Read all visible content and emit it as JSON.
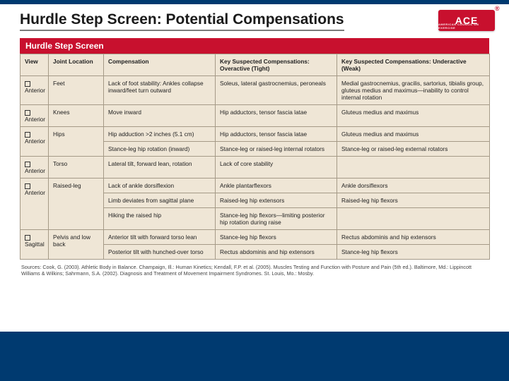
{
  "colors": {
    "accent_blue": "#003a70",
    "ace_red": "#c8102e",
    "paper": "#efe6d6",
    "rule": "#a59a87"
  },
  "logo": {
    "text": "ACE",
    "sub": "AMERICAN COUNCIL ON EXERCISE"
  },
  "title": "Hurdle Step Screen: Potential Compensations",
  "banner": "Hurdle Step Screen",
  "headers": {
    "view": "View",
    "location": "Joint Location",
    "compensation": "Compensation",
    "tight": "Key Suspected Compensations: Overactive (Tight)",
    "weak": "Key Suspected Compensations: Underactive (Weak)"
  },
  "rows": [
    {
      "view": "Anterior",
      "loc": "Feet",
      "cells": [
        {
          "comp": "Lack of foot stability: Ankles collapse inward/feet turn outward",
          "tight": "Soleus, lateral gastrocnemius, peroneals",
          "weak": "Medial gastrocnemius, gracilis, sartorius, tibialis group, gluteus medius and maximus—inability to control internal rotation"
        }
      ]
    },
    {
      "view": "Anterior",
      "loc": "Knees",
      "cells": [
        {
          "comp": "Move inward",
          "tight": "Hip adductors, tensor fascia latae",
          "weak": "Gluteus medius and maximus"
        }
      ]
    },
    {
      "view": "Anterior",
      "loc": "Hips",
      "cells": [
        {
          "comp": "Hip adduction >2 inches (5.1 cm)",
          "tight": "Hip adductors, tensor fascia latae",
          "weak": "Gluteus medius and maximus"
        },
        {
          "comp": "Stance-leg hip rotation (inward)",
          "tight": "Stance-leg or raised-leg internal rotators",
          "weak": "Stance-leg or raised-leg external rotators"
        }
      ]
    },
    {
      "view": "Anterior",
      "loc": "Torso",
      "cells": [
        {
          "comp": "Lateral tilt, forward lean, rotation",
          "tight": "Lack of core stability",
          "weak": ""
        }
      ]
    },
    {
      "view": "Anterior",
      "loc": "Raised-leg",
      "cells": [
        {
          "comp": "Lack of ankle dorsiflexion",
          "tight": "Ankle plantarflexors",
          "weak": "Ankle dorsiflexors"
        },
        {
          "comp": "Limb deviates from sagittal plane",
          "tight": "Raised-leg hip extensors",
          "weak": "Raised-leg hip flexors"
        },
        {
          "comp": "Hiking the raised hip",
          "tight": "Stance-leg hip flexors—limiting posterior hip rotation during raise",
          "weak": ""
        }
      ]
    },
    {
      "view": "Sagittal",
      "loc": "Pelvis and low back",
      "cells": [
        {
          "comp": "Anterior tilt with forward torso lean",
          "tight": "Stance-leg hip flexors",
          "weak": "Rectus abdominis and hip extensors"
        },
        {
          "comp": "Posterior tilt with hunched-over torso",
          "tight": "Rectus abdominis and hip extensors",
          "weak": "Stance-leg hip flexors"
        }
      ]
    }
  ],
  "sources": "Sources: Cook, G. (2003). Athletic Body in Balance. Champaign, Ill.: Human Kinetics; Kendall, F.P. et al. (2005). Muscles Testing and Function with Posture and Pain (5th ed.). Baltimore, Md.: Lippincott Williams & Wilkins; Sahrmann, S.A. (2002). Diagnosis and Treatment of Movement Impairment Syndromes. St. Louis, Mo.: Mosby."
}
